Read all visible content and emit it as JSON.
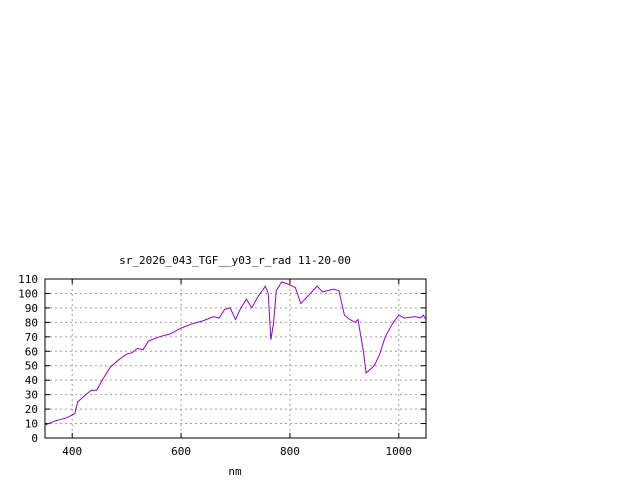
{
  "chart_data": {
    "type": "line",
    "title": "sr_2026_043_TGF__y03_r_rad 11-20-00",
    "xlabel": "nm",
    "ylabel": "",
    "xlim": [
      350,
      1050
    ],
    "ylim": [
      0,
      110
    ],
    "xticks": [
      400,
      600,
      800,
      1000
    ],
    "yticks": [
      0,
      10,
      20,
      30,
      40,
      50,
      60,
      70,
      80,
      90,
      100,
      110
    ],
    "grid": true,
    "line_color": "#9400d3",
    "series": [
      {
        "x": [
          350,
          370,
          390,
          405,
          410,
          425,
          435,
          445,
          455,
          470,
          485,
          500,
          510,
          520,
          530,
          540,
          560,
          580,
          600,
          620,
          640,
          660,
          670,
          680,
          690,
          700,
          710,
          720,
          730,
          740,
          755,
          760,
          765,
          770,
          775,
          785,
          800,
          810,
          820,
          830,
          850,
          860,
          880,
          890,
          900,
          910,
          920,
          925,
          935,
          940,
          955,
          965,
          975,
          990,
          1000,
          1010,
          1030,
          1040,
          1045,
          1050
        ],
        "y": [
          9,
          12,
          14,
          17,
          25,
          30,
          33,
          33,
          40,
          49,
          54,
          58,
          59,
          62,
          61,
          67,
          70,
          72,
          76,
          79,
          81,
          84,
          83,
          89,
          90,
          82,
          90,
          96,
          90,
          97,
          105,
          100,
          68,
          80,
          102,
          108,
          106,
          104,
          93,
          97,
          105,
          101,
          103,
          102,
          85,
          82,
          80,
          82,
          60,
          45,
          50,
          58,
          70,
          80,
          85,
          83,
          84,
          83,
          85,
          82
        ]
      }
    ]
  }
}
